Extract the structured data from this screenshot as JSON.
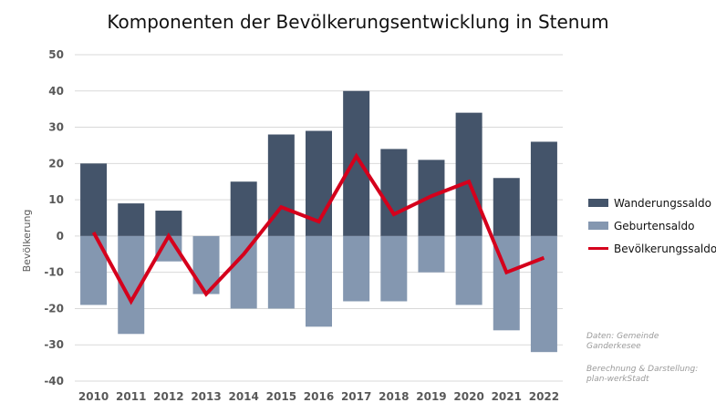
{
  "title": "Komponenten der Bevölkerungsentwicklung  in Stenum",
  "colors": {
    "wanderung": "#44546a",
    "geburten": "#8497b0",
    "bevoelkerung": "#d5001c",
    "grid": "#d9d9d9"
  },
  "credits": {
    "data_source": [
      "Daten: Gemeinde",
      "Ganderkesee"
    ],
    "calc": [
      "Berechnung & Darstellung:",
      "plan-werkStadt"
    ]
  },
  "chart_data": {
    "type": "bar",
    "stacked": true,
    "title": "Komponenten der Bevölkerungsentwicklung  in Stenum",
    "xlabel": "",
    "ylabel": "Bevölkerung",
    "ylim": [
      -40,
      50
    ],
    "yticks": [
      50,
      40,
      30,
      20,
      10,
      0,
      -10,
      -20,
      -30,
      -40
    ],
    "grid": true,
    "legend_position": "right",
    "categories": [
      "2010",
      "2011",
      "2012",
      "2013",
      "2014",
      "2015",
      "2016",
      "2017",
      "2018",
      "2019",
      "2020",
      "2021",
      "2022"
    ],
    "series": [
      {
        "name": "Wanderungssaldo",
        "type": "bar",
        "values": [
          20,
          9,
          7,
          0,
          15,
          28,
          29,
          40,
          24,
          21,
          34,
          16,
          26
        ]
      },
      {
        "name": "Geburtensaldo",
        "type": "bar",
        "values": [
          -19,
          -27,
          -7,
          -16,
          -20,
          -20,
          -25,
          -18,
          -18,
          -10,
          -19,
          -26,
          -32
        ]
      },
      {
        "name": "Bevölkerungssaldo",
        "type": "line",
        "values": [
          1,
          -18,
          0,
          -16,
          -5,
          8,
          4,
          22,
          6,
          11,
          15,
          -10,
          -6
        ]
      }
    ]
  }
}
